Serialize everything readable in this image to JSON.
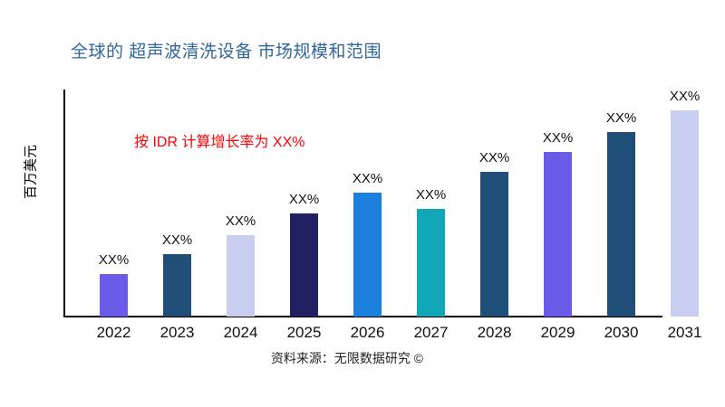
{
  "title": "全球的 超声波清洗设备 市场规模和范围",
  "title_color": "#31689B",
  "annotation": {
    "text": "按 IDR 计算增长率为 XX%",
    "color": "#FF0000"
  },
  "ylabel": "百万美元",
  "source": "资料来源：无限数据研究 ©",
  "axis_color": "#000000",
  "chart_data": {
    "type": "bar",
    "title": "全球的 超声波清洗设备 市场规模和范围",
    "xlabel": "",
    "ylabel": "百万美元",
    "grid": false,
    "legend": false,
    "y_tick_labels": [],
    "categories": [
      "2022",
      "2023",
      "2024",
      "2025",
      "2026",
      "2027",
      "2028",
      "2029",
      "2030",
      "2031"
    ],
    "bar_labels": [
      "XX%",
      "XX%",
      "XX%",
      "XX%",
      "XX%",
      "XX%",
      "XX%",
      "XX%",
      "XX%",
      "XX%"
    ],
    "values_relative": [
      47,
      69,
      90,
      114,
      137,
      119,
      160,
      182,
      204,
      228
    ],
    "values_note": "actual numeric values masked as XX% in source image; values_relative are estimated bar heights (relative units) read from pixels",
    "bar_colors": [
      "#6A5CE8",
      "#1F4E79",
      "#C9CDEF",
      "#231F63",
      "#1B80DC",
      "#12A7B8",
      "#1F4E79",
      "#6A5CE8",
      "#1F4E79",
      "#C9CDEF"
    ]
  }
}
